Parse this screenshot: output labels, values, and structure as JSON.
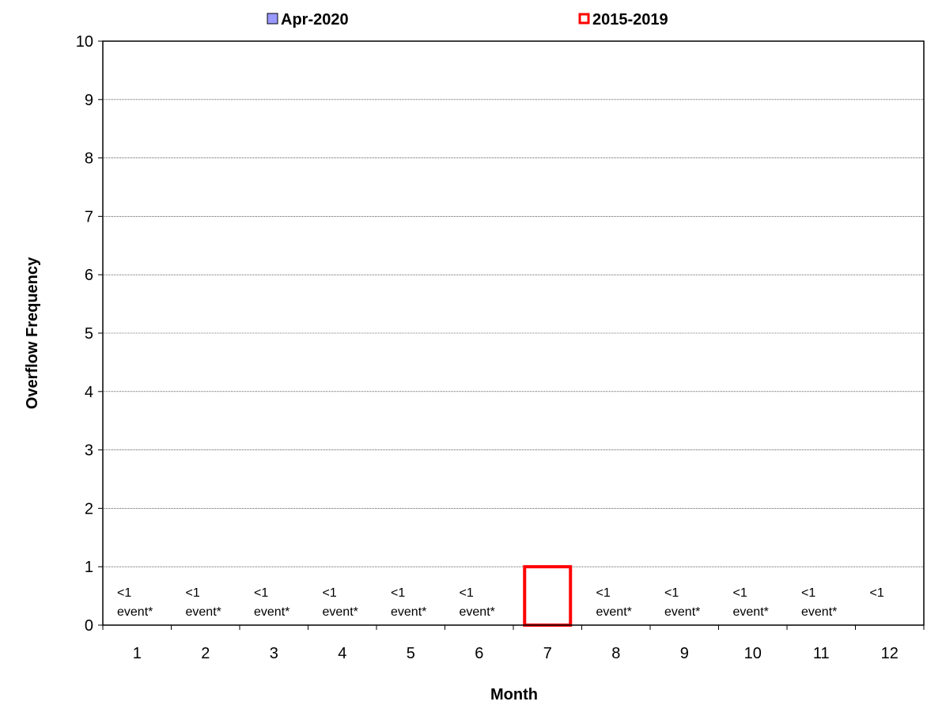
{
  "chart_data": {
    "type": "bar",
    "xlabel": "Month",
    "ylabel": "Overflow Frequency",
    "ylim": [
      0,
      10
    ],
    "yticks": [
      0,
      1,
      2,
      3,
      4,
      5,
      6,
      7,
      8,
      9,
      10
    ],
    "categories": [
      "1",
      "2",
      "3",
      "4",
      "5",
      "6",
      "7",
      "8",
      "9",
      "10",
      "11",
      "12"
    ],
    "grid": true,
    "legend_placement": "top",
    "series": [
      {
        "name": "Apr-2020",
        "color": "#9999ff",
        "style": "filled",
        "values": [
          0,
          0,
          0,
          0,
          0,
          0,
          0,
          0,
          0,
          0,
          0,
          0
        ]
      },
      {
        "name": "2015-2019",
        "color": "#ff0000",
        "style": "outline",
        "values": [
          0,
          0,
          0,
          0,
          0,
          0,
          1,
          0,
          0,
          0,
          0,
          0
        ]
      }
    ],
    "annotations": [
      {
        "category": "1",
        "line1": "<1",
        "line2": "event*"
      },
      {
        "category": "2",
        "line1": "<1",
        "line2": "event*"
      },
      {
        "category": "3",
        "line1": "<1",
        "line2": "event*"
      },
      {
        "category": "4",
        "line1": "<1",
        "line2": "event*"
      },
      {
        "category": "5",
        "line1": "<1",
        "line2": "event*"
      },
      {
        "category": "6",
        "line1": "<1",
        "line2": "event*"
      },
      {
        "category": "8",
        "line1": "<1",
        "line2": "event*"
      },
      {
        "category": "9",
        "line1": "<1",
        "line2": "event*"
      },
      {
        "category": "10",
        "line1": "<1",
        "line2": "event*"
      },
      {
        "category": "11",
        "line1": "<1",
        "line2": "event*"
      },
      {
        "category": "12",
        "line1": "<1",
        "line2": ""
      }
    ]
  }
}
